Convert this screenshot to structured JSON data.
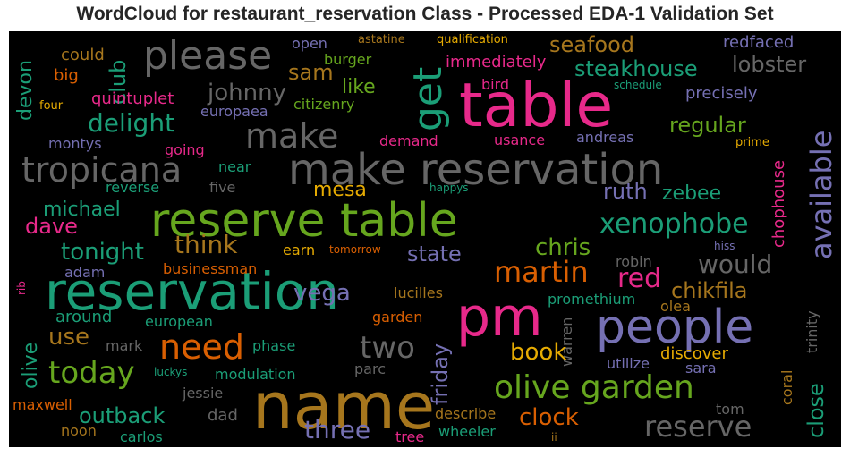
{
  "title": "WordCloud for restaurant_reservation Class - Processed EDA-1 Validation Set",
  "colors": {
    "pink": "#e7298a",
    "green": "#66a61e",
    "teal": "#1b9e77",
    "orange": "#d95f02",
    "gold": "#e6ab02",
    "brown": "#a6761d",
    "purple": "#7570b3",
    "gray": "#666666"
  },
  "words": [
    "reservation",
    "pm",
    "name",
    "table",
    "reserve table",
    "make reservation",
    "people",
    "please",
    "get",
    "olive garden",
    "tropicana",
    "make",
    "need",
    "today",
    "reserve",
    "two",
    "martin",
    "available",
    "xenophobe",
    "delight",
    "would",
    "think",
    "tonight",
    "three",
    "clock",
    "chikfila",
    "chris",
    "lobster",
    "seafood",
    "steakhouse",
    "johnny",
    "state",
    "red",
    "ruth",
    "zebee",
    "vega",
    "book",
    "outback",
    "mesa",
    "dave",
    "michael",
    "use",
    "sam",
    "like",
    "regular",
    "close",
    "friday",
    "olive",
    "devon",
    "club",
    "chophouse",
    "trinity",
    "warren",
    "precisely",
    "immediately",
    "burger",
    "europaea",
    "citizenry",
    "quintuplet",
    "could",
    "big",
    "montys",
    "going",
    "demand",
    "usance",
    "andreas",
    "bird",
    "qualification",
    "astatine",
    "open",
    "redfaced",
    "schedule",
    "four",
    "prime",
    "reverse",
    "five",
    "near",
    "happys",
    "adam",
    "earn",
    "tomorrow",
    "robin",
    "businessman",
    "lucilles",
    "promethium",
    "olea",
    "around",
    "european",
    "garden",
    "hiss",
    "rib",
    "mark",
    "phase",
    "discover",
    "sara",
    "utilize",
    "coral",
    "modulation",
    "parc",
    "jessie",
    "luckys",
    "maxwell",
    "dad",
    "noon",
    "carlos",
    "describe",
    "tree",
    "wheeler",
    "tom",
    "ii"
  ]
}
